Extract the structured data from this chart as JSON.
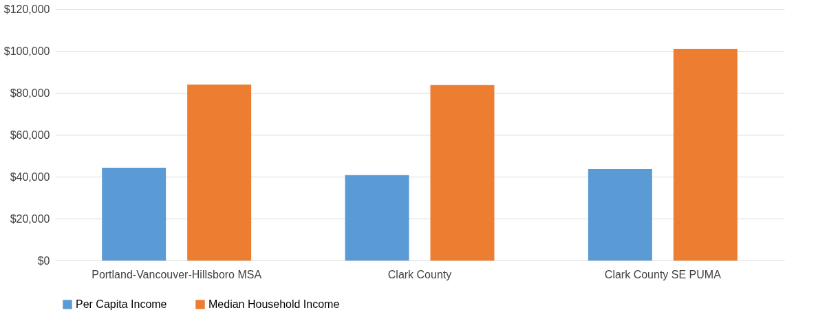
{
  "chart_data": {
    "type": "bar",
    "categories": [
      "Portland-Vancouver-Hillsboro MSA",
      "Clark County",
      "Clark County SE PUMA"
    ],
    "series": [
      {
        "name": "Per Capita Income",
        "color": "#5b9bd5",
        "values": [
          44300,
          40700,
          43600
        ]
      },
      {
        "name": "Median Household Income",
        "color": "#ed7d31",
        "values": [
          83900,
          83700,
          101000
        ]
      }
    ],
    "ylim": [
      0,
      120000
    ],
    "yticks": [
      {
        "value": 0,
        "label": "$0"
      },
      {
        "value": 20000,
        "label": "$20,000"
      },
      {
        "value": 40000,
        "label": "$40,000"
      },
      {
        "value": 60000,
        "label": "$60,000"
      },
      {
        "value": 80000,
        "label": "$80,000"
      },
      {
        "value": 100000,
        "label": "$100,000"
      },
      {
        "value": 120000,
        "label": "$120,000"
      }
    ],
    "grid": "y",
    "legend": "bottom"
  }
}
